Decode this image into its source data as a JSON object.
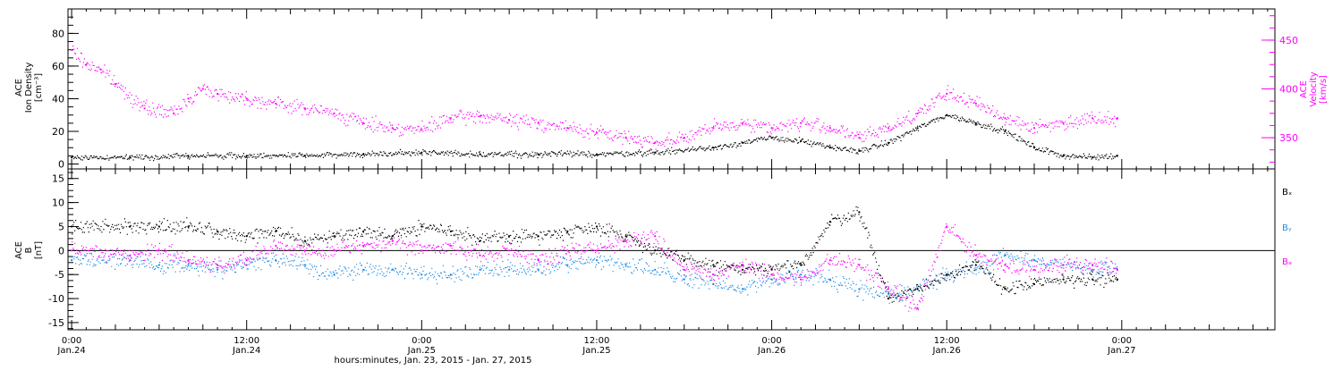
{
  "colors": {
    "axis": "#000000",
    "density": "#000000",
    "velocity": "#ff00ff",
    "bx": "#000000",
    "by": "#1e8ce6",
    "bz": "#ff00ff"
  },
  "chart_data": [
    {
      "type": "scatter",
      "panel": "plasma",
      "ylabel_left": [
        "ACE",
        "Ion Density",
        "[cm⁻³]"
      ],
      "ylabel_right": [
        "ACE",
        "Velocity",
        "[km/s]"
      ],
      "y_left": {
        "ylim": [
          -3,
          95
        ],
        "ticks": [
          0,
          20,
          40,
          60,
          80
        ],
        "tick_labels": [
          "0",
          "20",
          "40",
          "60",
          "80"
        ]
      },
      "y_right": {
        "ylim": [
          318,
          482
        ],
        "ticks": [
          350,
          400,
          450
        ],
        "tick_labels": [
          "350",
          "400",
          "450"
        ]
      },
      "x_unit": "hours since 2015-01-24 00:00",
      "series": [
        {
          "key": "density",
          "axis": "left",
          "x": [
            0,
            4,
            8,
            12,
            16,
            20,
            24,
            28,
            32,
            36,
            40,
            44,
            46,
            48,
            50,
            52,
            54,
            56,
            58,
            60,
            62,
            64,
            66,
            68,
            70,
            71.7
          ],
          "y": [
            4,
            4,
            5,
            5,
            5,
            6,
            7,
            6,
            6,
            6,
            7,
            10,
            13,
            16,
            14,
            10,
            8,
            13,
            22,
            30,
            25,
            20,
            10,
            5,
            4,
            5
          ]
        },
        {
          "key": "velocity",
          "axis": "right",
          "x": [
            0,
            1,
            2,
            3,
            5,
            7,
            8,
            9,
            10,
            12,
            14,
            16,
            18,
            20,
            22,
            24,
            26,
            28,
            30,
            32,
            34,
            36,
            38,
            40,
            42,
            44,
            46,
            48,
            50,
            52,
            54,
            56,
            58,
            60,
            62,
            64,
            66,
            68,
            70,
            71.7
          ],
          "y": [
            440,
            425,
            420,
            405,
            380,
            375,
            390,
            400,
            395,
            390,
            385,
            380,
            375,
            365,
            360,
            358,
            370,
            372,
            368,
            365,
            360,
            355,
            350,
            345,
            350,
            360,
            365,
            360,
            365,
            360,
            350,
            360,
            375,
            395,
            385,
            370,
            360,
            365,
            370,
            370
          ]
        }
      ]
    },
    {
      "type": "scatter",
      "panel": "magnetic-field",
      "ylabel_left": [
        "ACE",
        "B",
        "[nT]"
      ],
      "y_left": {
        "ylim": [
          -16.5,
          17
        ],
        "ticks": [
          -15,
          -10,
          -5,
          0,
          5,
          10,
          15
        ],
        "tick_labels": [
          "-15",
          "-10",
          "-5",
          "0",
          "5",
          "10",
          "15"
        ]
      },
      "legend": [
        "Bₓ",
        "Bᵧ",
        "Bₔ"
      ],
      "legend_placement": "right",
      "x_unit": "hours since 2015-01-24 00:00",
      "series": [
        {
          "key": "bx",
          "name": "Bₓ",
          "x": [
            0,
            4,
            6,
            8,
            10,
            12,
            14,
            16,
            18,
            20,
            22,
            24,
            26,
            28,
            30,
            32,
            34,
            36,
            38,
            40,
            42,
            44,
            46,
            48,
            50,
            52,
            54,
            56,
            58,
            60,
            62,
            64,
            66,
            68,
            70,
            71.7
          ],
          "y": [
            5,
            5,
            5,
            5,
            4,
            3,
            4,
            2,
            3,
            4,
            3,
            5,
            4,
            2,
            3,
            3,
            4,
            5,
            3,
            0,
            -2,
            -3,
            -4,
            -4,
            -3,
            6,
            8,
            -10,
            -8,
            -5,
            -3,
            -8,
            -7,
            -6,
            -6,
            -6
          ]
        },
        {
          "key": "by",
          "name": "Bᵧ",
          "x": [
            0,
            4,
            6,
            8,
            10,
            12,
            14,
            16,
            18,
            20,
            22,
            24,
            26,
            28,
            30,
            32,
            34,
            36,
            38,
            40,
            42,
            44,
            46,
            48,
            50,
            52,
            54,
            56,
            58,
            60,
            62,
            64,
            66,
            68,
            70,
            71.7
          ],
          "y": [
            -2,
            -2,
            -3,
            -3,
            -4,
            -3,
            -2,
            -3,
            -5,
            -4,
            -4,
            -5,
            -5,
            -4,
            -4,
            -4,
            -3,
            -2,
            -3,
            -4,
            -6,
            -7,
            -8,
            -6,
            -5,
            -6,
            -8,
            -9,
            -8,
            -5,
            -4,
            -1,
            -2,
            -3,
            -4,
            -4
          ]
        },
        {
          "key": "bz",
          "name": "Bₔ",
          "x": [
            0,
            4,
            6,
            8,
            10,
            12,
            14,
            16,
            18,
            20,
            22,
            24,
            26,
            28,
            30,
            32,
            34,
            36,
            38,
            40,
            42,
            44,
            46,
            48,
            50,
            52,
            54,
            56,
            58,
            60,
            62,
            64,
            66,
            68,
            70,
            71.7
          ],
          "y": [
            0,
            -1,
            0,
            -2,
            -3,
            -2,
            1,
            0,
            0,
            1,
            2,
            0,
            1,
            -1,
            0,
            -2,
            0,
            0,
            2,
            3,
            -4,
            -5,
            -3,
            -5,
            -6,
            -2,
            -3,
            -8,
            -12,
            5,
            -1,
            -3,
            -4,
            -3,
            -3,
            -4
          ]
        }
      ]
    }
  ],
  "x_axis": {
    "xlim": [
      -0.25,
      82.5
    ],
    "major_ticks": [
      0,
      12,
      24,
      36,
      48,
      60,
      72
    ],
    "tick_time_labels": [
      "0:00",
      "12:00",
      "0:00",
      "12:00",
      "0:00",
      "12:00",
      "0:00"
    ],
    "tick_date_labels": [
      "Jan.24",
      "Jan.24",
      "Jan.25",
      "Jan.25",
      "Jan.26",
      "Jan.26",
      "Jan.27"
    ],
    "xlabel": "hours:minutes, Jan. 23, 2015 - Jan. 27, 2015"
  }
}
